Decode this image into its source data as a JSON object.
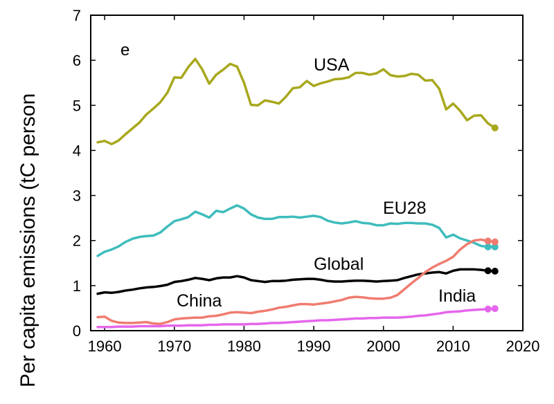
{
  "chart_data": {
    "type": "line",
    "title": "",
    "panel_label": "e",
    "xlabel": "",
    "ylabel": "Per capita emissions (tC person",
    "xlim": [
      1958,
      2020
    ],
    "ylim": [
      0,
      7
    ],
    "xticks": [
      1960,
      1970,
      1980,
      1990,
      2000,
      2010,
      2020
    ],
    "yticks": [
      0,
      1,
      2,
      3,
      4,
      5,
      6,
      7
    ],
    "grid": false,
    "legend": "none (direct labels)",
    "x": [
      1959,
      1960,
      1961,
      1962,
      1963,
      1964,
      1965,
      1966,
      1967,
      1968,
      1969,
      1970,
      1971,
      1972,
      1973,
      1974,
      1975,
      1976,
      1977,
      1978,
      1979,
      1980,
      1981,
      1982,
      1983,
      1984,
      1985,
      1986,
      1987,
      1988,
      1989,
      1990,
      1991,
      1992,
      1993,
      1994,
      1995,
      1996,
      1997,
      1998,
      1999,
      2000,
      2001,
      2002,
      2003,
      2004,
      2005,
      2006,
      2007,
      2008,
      2009,
      2010,
      2011,
      2012,
      2013,
      2014,
      2015,
      2016
    ],
    "series": [
      {
        "name": "USA",
        "color": "#a8a81e",
        "values": [
          4.18,
          4.21,
          4.14,
          4.22,
          4.36,
          4.49,
          4.62,
          4.8,
          4.93,
          5.07,
          5.28,
          5.62,
          5.61,
          5.85,
          6.03,
          5.8,
          5.48,
          5.68,
          5.79,
          5.92,
          5.86,
          5.5,
          5.01,
          5.0,
          5.11,
          5.08,
          5.04,
          5.19,
          5.38,
          5.4,
          5.54,
          5.43,
          5.49,
          5.53,
          5.58,
          5.59,
          5.62,
          5.72,
          5.72,
          5.68,
          5.71,
          5.8,
          5.67,
          5.64,
          5.65,
          5.7,
          5.68,
          5.55,
          5.56,
          5.37,
          4.91,
          5.04,
          4.88,
          4.67,
          4.77,
          4.78,
          4.6,
          4.5
        ],
        "end_marker": true
      },
      {
        "name": "EU28",
        "color": "#3ebcbc",
        "values": [
          1.66,
          1.75,
          1.8,
          1.87,
          1.97,
          2.04,
          2.08,
          2.1,
          2.11,
          2.18,
          2.31,
          2.43,
          2.47,
          2.52,
          2.64,
          2.58,
          2.51,
          2.66,
          2.63,
          2.71,
          2.78,
          2.71,
          2.58,
          2.51,
          2.48,
          2.48,
          2.52,
          2.52,
          2.53,
          2.51,
          2.53,
          2.55,
          2.52,
          2.44,
          2.4,
          2.38,
          2.4,
          2.43,
          2.39,
          2.38,
          2.34,
          2.34,
          2.38,
          2.37,
          2.39,
          2.39,
          2.38,
          2.38,
          2.35,
          2.28,
          2.07,
          2.13,
          2.05,
          2.0,
          1.95,
          1.88,
          1.86,
          1.86
        ],
        "end_marker": true
      },
      {
        "name": "Global",
        "color": "#000000",
        "values": [
          0.82,
          0.85,
          0.84,
          0.86,
          0.89,
          0.91,
          0.94,
          0.96,
          0.97,
          0.99,
          1.02,
          1.08,
          1.1,
          1.13,
          1.17,
          1.15,
          1.12,
          1.16,
          1.18,
          1.18,
          1.21,
          1.18,
          1.12,
          1.1,
          1.08,
          1.1,
          1.1,
          1.11,
          1.13,
          1.14,
          1.15,
          1.15,
          1.13,
          1.1,
          1.09,
          1.09,
          1.1,
          1.11,
          1.11,
          1.1,
          1.09,
          1.1,
          1.11,
          1.12,
          1.17,
          1.21,
          1.25,
          1.27,
          1.29,
          1.3,
          1.27,
          1.33,
          1.36,
          1.36,
          1.36,
          1.35,
          1.33,
          1.32
        ],
        "end_marker": true
      },
      {
        "name": "China",
        "color": "#f07c70",
        "values": [
          0.3,
          0.31,
          0.22,
          0.18,
          0.17,
          0.17,
          0.18,
          0.19,
          0.16,
          0.15,
          0.19,
          0.25,
          0.27,
          0.28,
          0.29,
          0.29,
          0.32,
          0.33,
          0.36,
          0.4,
          0.41,
          0.4,
          0.39,
          0.42,
          0.44,
          0.47,
          0.51,
          0.53,
          0.56,
          0.59,
          0.59,
          0.58,
          0.6,
          0.62,
          0.65,
          0.68,
          0.73,
          0.75,
          0.74,
          0.72,
          0.71,
          0.71,
          0.73,
          0.79,
          0.92,
          1.05,
          1.17,
          1.3,
          1.4,
          1.48,
          1.55,
          1.64,
          1.8,
          1.92,
          2.0,
          2.02,
          1.99,
          1.97
        ],
        "end_marker": true
      },
      {
        "name": "India",
        "color": "#e566ec",
        "values": [
          0.08,
          0.08,
          0.08,
          0.09,
          0.09,
          0.09,
          0.1,
          0.1,
          0.1,
          0.1,
          0.11,
          0.11,
          0.11,
          0.12,
          0.12,
          0.12,
          0.13,
          0.13,
          0.14,
          0.14,
          0.14,
          0.14,
          0.15,
          0.15,
          0.16,
          0.17,
          0.17,
          0.18,
          0.19,
          0.2,
          0.21,
          0.22,
          0.23,
          0.23,
          0.24,
          0.25,
          0.26,
          0.27,
          0.27,
          0.28,
          0.28,
          0.29,
          0.29,
          0.29,
          0.3,
          0.31,
          0.33,
          0.34,
          0.36,
          0.38,
          0.41,
          0.42,
          0.43,
          0.45,
          0.46,
          0.47,
          0.48,
          0.49
        ],
        "end_marker": true
      }
    ]
  }
}
